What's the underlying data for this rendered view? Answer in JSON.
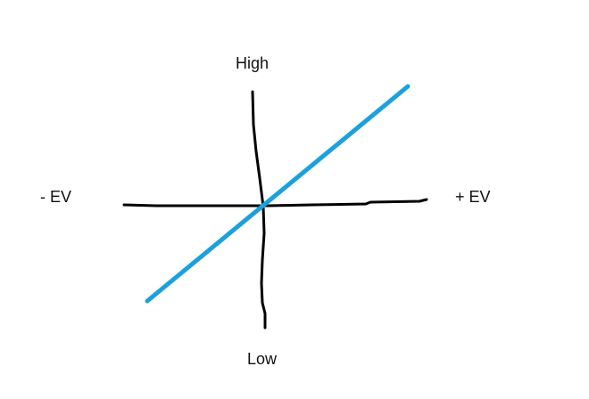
{
  "labels": {
    "top": "High",
    "bottom": "Low",
    "left": "- EV",
    "right": "+ EV"
  },
  "colors": {
    "axis": "#000000",
    "line": "#1ba1dc",
    "background": "#ffffff"
  }
}
